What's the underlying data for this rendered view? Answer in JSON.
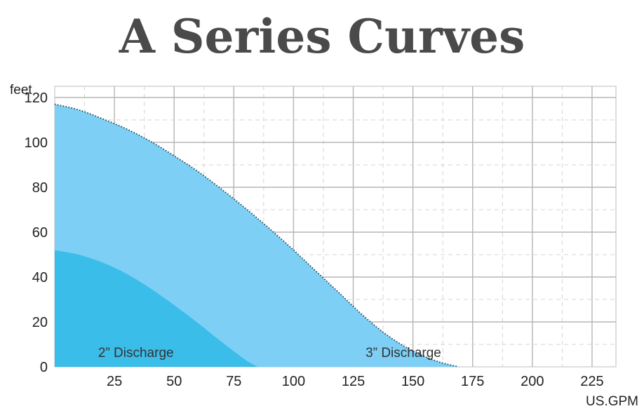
{
  "chart_data": {
    "type": "area",
    "title": "A Series Curves",
    "ylabel": "feet",
    "xlabel": "US.GPM",
    "xlim": [
      0,
      235
    ],
    "ylim": [
      0,
      125
    ],
    "xticks": [
      25,
      50,
      75,
      100,
      125,
      150,
      175,
      200,
      225
    ],
    "yticks": [
      0,
      20,
      40,
      60,
      80,
      100,
      120
    ],
    "grid": true,
    "series": [
      {
        "name": "3” Discharge",
        "color": "#7ecff5",
        "x": [
          0,
          10,
          20,
          30,
          40,
          50,
          60,
          70,
          80,
          90,
          100,
          110,
          120,
          130,
          140,
          150,
          160,
          169
        ],
        "y": [
          117,
          114.5,
          110.5,
          106,
          100.5,
          94,
          87,
          79,
          70.5,
          61.5,
          52,
          42,
          32,
          22,
          13.5,
          7,
          2.5,
          0
        ]
      },
      {
        "name": "2” Discharge",
        "color": "#3bbde9",
        "x": [
          0,
          10,
          20,
          30,
          40,
          50,
          60,
          70,
          80,
          85
        ],
        "y": [
          52,
          50,
          46.5,
          41.5,
          35,
          27.5,
          19.5,
          11,
          3,
          0
        ]
      }
    ]
  }
}
